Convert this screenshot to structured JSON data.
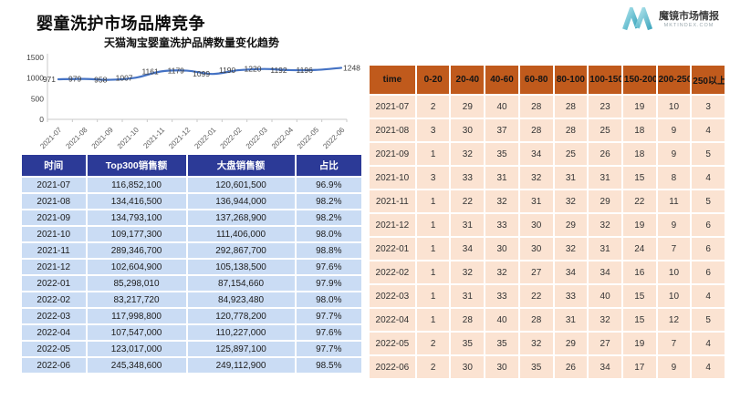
{
  "page": {
    "title": "婴童洗护市场品牌竞争"
  },
  "logo": {
    "name": "魔镜市场情报",
    "domain": "MKTINDEX.COM"
  },
  "colors": {
    "sales_header_bg": "#2C3A97",
    "sales_row_bg": "#CADCF4",
    "price_header_bg": "#C05A1C",
    "price_row_bg": "#FBE3D2",
    "line_blue": "#4472C4",
    "logo_teal_light": "#A9E1EA",
    "logo_teal_dark": "#2F9FB8"
  },
  "chart_data": [
    {
      "type": "line",
      "title": "天猫淘宝婴童洗护品牌数量变化趋势",
      "categories": [
        "2021-07",
        "2021-08",
        "2021-09",
        "2021-10",
        "2021-11",
        "2021-12",
        "2022-01",
        "2022-02",
        "2022-03",
        "2022-04",
        "2022-05",
        "2022-06"
      ],
      "values": [
        971,
        979,
        958,
        1007,
        1161,
        1179,
        1099,
        1190,
        1220,
        1192,
        1196,
        1248
      ],
      "xlabel": "",
      "ylabel": "",
      "ylim": [
        0,
        1500
      ],
      "yticks": [
        0,
        500,
        1000,
        1500
      ],
      "grid": false,
      "legend": "none",
      "line_color": "#4472C4",
      "data_labels": true
    },
    {
      "type": "table",
      "title": "Top300销售额与大盘销售额",
      "columns": [
        "时间",
        "Top300销售额",
        "大盘销售额",
        "占比"
      ],
      "col_widths": [
        "19%",
        "29.5%",
        "32%",
        "19.5%"
      ],
      "rows": [
        [
          "2021-07",
          "116,852,100",
          "120,601,500",
          "96.9%"
        ],
        [
          "2021-08",
          "134,416,500",
          "136,944,000",
          "98.2%"
        ],
        [
          "2021-09",
          "134,793,100",
          "137,268,900",
          "98.2%"
        ],
        [
          "2021-10",
          "109,177,300",
          "111,406,000",
          "98.0%"
        ],
        [
          "2021-11",
          "289,346,700",
          "292,867,700",
          "98.8%"
        ],
        [
          "2021-12",
          "102,604,900",
          "105,138,500",
          "97.6%"
        ],
        [
          "2022-01",
          "85,298,010",
          "87,154,660",
          "97.9%"
        ],
        [
          "2022-02",
          "83,217,720",
          "84,923,480",
          "98.0%"
        ],
        [
          "2022-03",
          "117,998,800",
          "120,778,200",
          "97.7%"
        ],
        [
          "2022-04",
          "107,547,000",
          "110,227,000",
          "97.6%"
        ],
        [
          "2022-05",
          "123,017,000",
          "125,897,100",
          "97.7%"
        ],
        [
          "2022-06",
          "245,348,600",
          "249,112,900",
          "98.5%"
        ]
      ]
    },
    {
      "type": "table",
      "title": "价格带品牌数量分布",
      "columns": [
        "time",
        "0-20",
        "20-40",
        "40-60",
        "60-80",
        "80-100",
        "100-150",
        "150-200",
        "200-250",
        "250以上"
      ],
      "col_widths": [
        "13.4%",
        "9.6%",
        "9.6%",
        "9.6%",
        "9.6%",
        "9.6%",
        "9.6%",
        "9.6%",
        "9.6%",
        "9.6%"
      ],
      "rows": [
        [
          "2021-07",
          "2",
          "29",
          "40",
          "28",
          "28",
          "23",
          "19",
          "10",
          "3"
        ],
        [
          "2021-08",
          "3",
          "30",
          "37",
          "28",
          "28",
          "25",
          "18",
          "9",
          "4"
        ],
        [
          "2021-09",
          "1",
          "32",
          "35",
          "34",
          "25",
          "26",
          "18",
          "9",
          "5"
        ],
        [
          "2021-10",
          "3",
          "33",
          "31",
          "32",
          "31",
          "31",
          "15",
          "8",
          "4"
        ],
        [
          "2021-11",
          "1",
          "22",
          "32",
          "31",
          "32",
          "29",
          "22",
          "11",
          "5"
        ],
        [
          "2021-12",
          "1",
          "31",
          "33",
          "30",
          "29",
          "32",
          "19",
          "9",
          "6"
        ],
        [
          "2022-01",
          "1",
          "34",
          "30",
          "30",
          "32",
          "31",
          "24",
          "7",
          "6"
        ],
        [
          "2022-02",
          "1",
          "32",
          "32",
          "27",
          "34",
          "34",
          "16",
          "10",
          "6"
        ],
        [
          "2022-03",
          "1",
          "31",
          "33",
          "22",
          "33",
          "40",
          "15",
          "10",
          "4"
        ],
        [
          "2022-04",
          "1",
          "28",
          "40",
          "28",
          "31",
          "32",
          "15",
          "12",
          "5"
        ],
        [
          "2022-05",
          "2",
          "35",
          "35",
          "32",
          "29",
          "27",
          "19",
          "7",
          "4"
        ],
        [
          "2022-06",
          "2",
          "30",
          "30",
          "35",
          "26",
          "34",
          "17",
          "9",
          "4"
        ]
      ]
    }
  ]
}
